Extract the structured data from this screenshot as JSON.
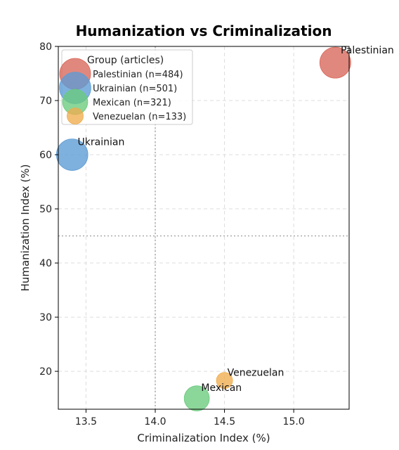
{
  "chart_data": {
    "type": "scatter",
    "title": "Humanization vs Criminalization",
    "xlabel": "Criminalization Index (%)",
    "ylabel": "Humanization Index (%)",
    "xlim": [
      13.3,
      15.4
    ],
    "ylim": [
      13,
      80
    ],
    "xticks": [
      13.5,
      14.0,
      14.5,
      15.0
    ],
    "xtick_labels": [
      "13.5",
      "14.0",
      "14.5",
      "15.0"
    ],
    "yticks": [
      20,
      30,
      40,
      50,
      60,
      70,
      80
    ],
    "ytick_labels": [
      "20",
      "30",
      "40",
      "50",
      "60",
      "70",
      "80"
    ],
    "grid": true,
    "reference_lines": {
      "x": 14.0,
      "y": 45
    },
    "legend": {
      "title": "Group (articles)",
      "placement": "top-left",
      "entries": [
        "Palestinian (n=484)",
        "Ukrainian (n=501)",
        "Mexican (n=321)",
        "Venezuelan (n=133)"
      ]
    },
    "series": [
      {
        "label": "Palestinian",
        "x": 15.3,
        "y": 77,
        "n": 484,
        "color": "#d9675a"
      },
      {
        "label": "Ukrainian",
        "x": 13.4,
        "y": 60,
        "n": 501,
        "color": "#5b9bd5"
      },
      {
        "label": "Mexican",
        "x": 14.3,
        "y": 15,
        "n": 321,
        "color": "#6acb7c"
      },
      {
        "label": "Venezuelan",
        "x": 14.5,
        "y": 18.3,
        "n": 133,
        "color": "#f0ad4e"
      }
    ]
  }
}
